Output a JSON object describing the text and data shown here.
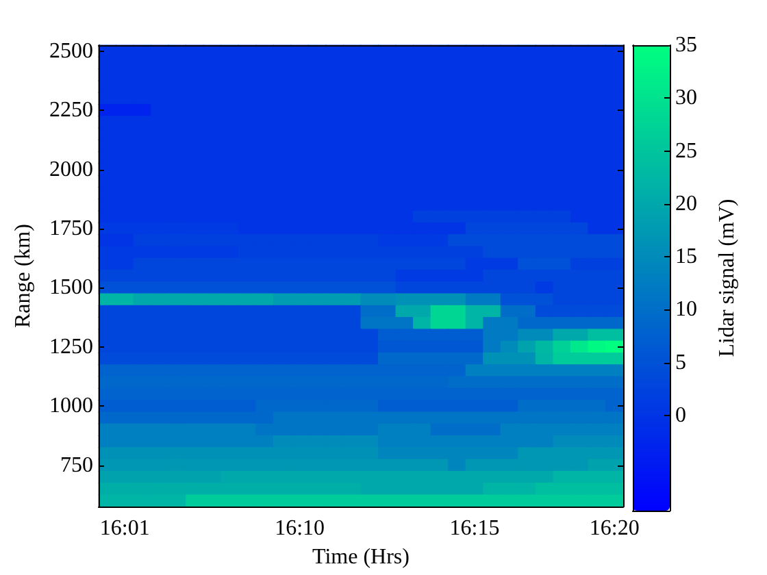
{
  "chart_data": {
    "type": "heatmap",
    "xlabel": "Time (Hrs)",
    "ylabel": "Range (km)",
    "clabel": "Lidar signal (mV)",
    "categories": [
      null,
      "16:01",
      null,
      null,
      null,
      null,
      null,
      null,
      null,
      null,
      null,
      "16:10",
      null,
      null,
      null,
      null,
      null,
      null,
      null,
      null,
      null,
      "16:15",
      null,
      null,
      null,
      null,
      null,
      null,
      null,
      "16:20"
    ],
    "y_categories": [
      "2500",
      null,
      null,
      null,
      null,
      "2250",
      null,
      null,
      null,
      null,
      "2000",
      null,
      null,
      null,
      null,
      "1750",
      null,
      null,
      null,
      null,
      "1500",
      null,
      null,
      null,
      null,
      "1250",
      null,
      null,
      null,
      null,
      "1000",
      null,
      null,
      null,
      null,
      "750",
      null,
      null,
      null
    ],
    "clim": [
      -9,
      35
    ],
    "cticks": [
      0,
      5,
      10,
      15,
      20,
      25,
      30,
      35
    ],
    "cells": [
      [
        0,
        0,
        0,
        0,
        0,
        0,
        0,
        0,
        0,
        0,
        0,
        0,
        0,
        0,
        0,
        0,
        0,
        0,
        0,
        0,
        0,
        0,
        0,
        0,
        0,
        0,
        0,
        0,
        0,
        0
      ],
      [
        0,
        0,
        0,
        0,
        0,
        0,
        0,
        0,
        0,
        0,
        0,
        0,
        0,
        0,
        0,
        0,
        0,
        0,
        0,
        0,
        0,
        0,
        0,
        0,
        0,
        0,
        0,
        0,
        0,
        0
      ],
      [
        0,
        0,
        0,
        0,
        0,
        0,
        0,
        0,
        0,
        0,
        0,
        0,
        0,
        0,
        0,
        0,
        0,
        0,
        0,
        0,
        0,
        0,
        0,
        0,
        0,
        0,
        0,
        0,
        0,
        0
      ],
      [
        0,
        0,
        0,
        0,
        0,
        0,
        0,
        0,
        0,
        0,
        0,
        0,
        0,
        0,
        0,
        0,
        0,
        0,
        0,
        0,
        0,
        0,
        0,
        0,
        0,
        0,
        0,
        0,
        0,
        0
      ],
      [
        0,
        0,
        0,
        0,
        0,
        0,
        0,
        0,
        0,
        0,
        0,
        0,
        0,
        0,
        0,
        0,
        0,
        0,
        0,
        0,
        0,
        0,
        0,
        0,
        0,
        0,
        0,
        0,
        0,
        0
      ],
      [
        -3,
        -3,
        -3,
        0,
        0,
        0,
        0,
        0,
        0,
        0,
        0,
        0,
        0,
        0,
        0,
        0,
        0,
        0,
        0,
        0,
        0,
        0,
        0,
        0,
        0,
        0,
        0,
        0,
        0,
        0
      ],
      [
        0,
        0,
        0,
        0,
        0,
        0,
        0,
        0,
        0,
        0,
        0,
        0,
        0,
        0,
        0,
        0,
        0,
        0,
        0,
        0,
        0,
        0,
        0,
        0,
        0,
        0,
        0,
        0,
        0,
        0
      ],
      [
        0,
        0,
        0,
        0,
        0,
        0,
        0,
        0,
        0,
        0,
        0,
        0,
        0,
        0,
        0,
        0,
        0,
        0,
        0,
        0,
        0,
        0,
        0,
        0,
        0,
        0,
        0,
        0,
        0,
        0
      ],
      [
        0,
        0,
        0,
        0,
        0,
        0,
        0,
        0,
        0,
        0,
        0,
        0,
        0,
        0,
        0,
        0,
        0,
        0,
        0,
        0,
        0,
        0,
        0,
        0,
        0,
        0,
        0,
        0,
        0,
        0
      ],
      [
        0,
        0,
        0,
        0,
        0,
        0,
        0,
        0,
        0,
        0,
        0,
        0,
        0,
        0,
        0,
        0,
        0,
        0,
        0,
        0,
        0,
        0,
        0,
        0,
        0,
        0,
        0,
        0,
        0,
        0
      ],
      [
        0,
        0,
        0,
        0,
        0,
        0,
        0,
        0,
        0,
        0,
        0,
        0,
        0,
        0,
        0,
        0,
        0,
        0,
        0,
        0,
        0,
        0,
        0,
        0,
        0,
        0,
        0,
        0,
        0,
        0
      ],
      [
        0,
        0,
        0,
        0,
        0,
        0,
        0,
        0,
        0,
        0,
        0,
        0,
        0,
        0,
        0,
        0,
        0,
        0,
        0,
        0,
        0,
        0,
        0,
        0,
        0,
        0,
        0,
        0,
        0,
        0
      ],
      [
        0,
        0,
        0,
        0,
        0,
        0,
        0,
        0,
        0,
        0,
        0,
        0,
        0,
        0,
        0,
        0,
        0,
        0,
        0,
        0,
        0,
        0,
        0,
        0,
        0,
        0,
        0,
        0,
        0,
        0
      ],
      [
        0,
        0,
        0,
        0,
        0,
        0,
        0,
        0,
        0,
        0,
        0,
        0,
        0,
        0,
        0,
        0,
        0,
        0,
        0,
        0,
        0,
        0,
        0,
        0,
        0,
        0,
        0,
        0,
        0,
        0
      ],
      [
        0,
        0,
        0,
        0,
        0,
        0,
        0,
        0,
        0,
        0,
        0,
        0,
        0,
        0,
        0,
        0,
        0,
        0,
        2,
        2,
        2,
        2,
        2,
        2,
        2,
        2,
        2,
        0,
        0,
        0
      ],
      [
        1,
        1,
        1,
        1,
        1,
        1,
        1,
        1,
        0,
        0,
        0,
        0,
        0,
        0,
        0,
        0,
        0,
        0,
        0,
        0,
        0,
        3,
        3,
        3,
        3,
        3,
        3,
        3,
        0,
        0
      ],
      [
        0,
        0,
        2,
        2,
        2,
        2,
        2,
        2,
        2,
        2,
        2,
        2,
        2,
        2,
        2,
        2,
        1,
        1,
        1,
        1,
        4,
        4,
        4,
        4,
        4,
        4,
        4,
        4,
        4,
        4
      ],
      [
        1,
        1,
        1,
        1,
        1,
        1,
        1,
        1,
        2,
        2,
        2,
        2,
        2,
        2,
        2,
        2,
        2,
        2,
        2,
        2,
        2,
        2,
        4,
        4,
        4,
        4,
        4,
        4,
        4,
        4
      ],
      [
        1,
        1,
        3,
        3,
        3,
        3,
        3,
        3,
        3,
        3,
        3,
        3,
        3,
        3,
        3,
        3,
        3,
        3,
        3,
        3,
        3,
        1,
        1,
        1,
        5,
        5,
        5,
        2,
        2,
        2
      ],
      [
        3,
        3,
        3,
        3,
        3,
        3,
        3,
        3,
        3,
        3,
        3,
        3,
        3,
        3,
        3,
        3,
        3,
        1,
        1,
        1,
        1,
        1,
        3,
        3,
        3,
        3,
        3,
        3,
        3,
        3
      ],
      [
        5,
        5,
        5,
        5,
        5,
        5,
        5,
        5,
        5,
        5,
        5,
        5,
        5,
        5,
        5,
        5,
        5,
        3,
        3,
        3,
        3,
        3,
        3,
        3,
        3,
        1,
        3,
        3,
        3,
        3
      ],
      [
        22,
        22,
        20,
        20,
        20,
        20,
        20,
        20,
        20,
        20,
        18,
        18,
        18,
        18,
        18,
        15,
        15,
        16,
        16,
        16,
        16,
        12,
        12,
        5,
        5,
        5,
        3,
        3,
        3,
        3
      ],
      [
        3,
        3,
        3,
        3,
        3,
        3,
        3,
        3,
        3,
        3,
        3,
        3,
        3,
        3,
        3,
        10,
        10,
        20,
        20,
        28,
        28,
        22,
        22,
        10,
        10,
        4,
        4,
        4,
        4,
        4
      ],
      [
        3,
        3,
        3,
        3,
        3,
        3,
        3,
        3,
        3,
        3,
        3,
        3,
        3,
        3,
        3,
        11,
        11,
        11,
        22,
        28,
        28,
        22,
        12,
        12,
        9,
        9,
        9,
        9,
        9,
        9
      ],
      [
        3,
        3,
        3,
        3,
        3,
        3,
        3,
        3,
        3,
        3,
        3,
        3,
        3,
        3,
        3,
        3,
        7,
        7,
        7,
        7,
        7,
        7,
        12,
        12,
        15,
        15,
        20,
        20,
        24,
        24
      ],
      [
        3,
        3,
        3,
        3,
        3,
        3,
        3,
        3,
        3,
        3,
        3,
        3,
        3,
        3,
        3,
        3,
        6,
        6,
        6,
        6,
        6,
        6,
        12,
        15,
        19,
        23,
        27,
        31,
        34,
        35
      ],
      [
        4,
        4,
        4,
        4,
        4,
        4,
        4,
        4,
        4,
        4,
        4,
        4,
        4,
        4,
        4,
        4,
        9,
        9,
        9,
        9,
        9,
        9,
        16,
        16,
        16,
        22,
        26,
        26,
        26,
        26
      ],
      [
        8,
        8,
        8,
        8,
        8,
        8,
        8,
        8,
        8,
        8,
        8,
        8,
        8,
        8,
        8,
        8,
        8,
        8,
        8,
        8,
        8,
        13,
        13,
        13,
        13,
        13,
        13,
        13,
        13,
        13
      ],
      [
        9,
        9,
        9,
        9,
        9,
        9,
        9,
        9,
        9,
        9,
        9,
        9,
        9,
        9,
        9,
        9,
        9,
        9,
        9,
        9,
        10,
        10,
        10,
        10,
        10,
        10,
        10,
        10,
        10,
        10
      ],
      [
        8,
        8,
        8,
        8,
        8,
        8,
        8,
        8,
        8,
        8,
        8,
        8,
        8,
        8,
        8,
        8,
        8,
        8,
        8,
        8,
        8,
        8,
        8,
        8,
        8,
        8,
        8,
        8,
        8,
        8
      ],
      [
        7,
        7,
        7,
        7,
        7,
        7,
        7,
        7,
        7,
        9,
        9,
        9,
        9,
        9,
        9,
        9,
        7,
        7,
        7,
        7,
        7,
        7,
        7,
        7,
        10,
        10,
        10,
        10,
        10,
        8
      ],
      [
        9,
        9,
        9,
        9,
        9,
        9,
        9,
        9,
        9,
        9,
        11,
        11,
        11,
        11,
        11,
        11,
        11,
        11,
        11,
        11,
        11,
        11,
        11,
        11,
        11,
        11,
        11,
        11,
        11,
        11
      ],
      [
        13,
        13,
        13,
        13,
        13,
        13,
        13,
        13,
        13,
        11,
        11,
        11,
        11,
        11,
        11,
        11,
        13,
        13,
        13,
        10,
        10,
        10,
        10,
        13,
        13,
        13,
        13,
        13,
        13,
        13
      ],
      [
        13,
        13,
        13,
        13,
        13,
        13,
        13,
        13,
        13,
        13,
        15,
        15,
        15,
        15,
        15,
        15,
        13,
        13,
        13,
        13,
        13,
        13,
        13,
        13,
        13,
        13,
        15,
        15,
        15,
        15
      ],
      [
        16,
        16,
        16,
        16,
        16,
        16,
        16,
        16,
        16,
        16,
        16,
        16,
        16,
        16,
        16,
        16,
        14,
        14,
        14,
        14,
        14,
        14,
        14,
        14,
        17,
        17,
        17,
        17,
        17,
        17
      ],
      [
        17,
        17,
        17,
        17,
        17,
        17,
        17,
        17,
        17,
        17,
        17,
        17,
        17,
        17,
        17,
        17,
        17,
        17,
        17,
        17,
        14,
        17,
        17,
        17,
        17,
        17,
        17,
        17,
        19,
        19
      ],
      [
        19,
        19,
        19,
        19,
        19,
        19,
        19,
        20,
        20,
        20,
        20,
        20,
        20,
        20,
        20,
        20,
        20,
        20,
        20,
        20,
        20,
        20,
        20,
        20,
        20,
        20,
        22,
        22,
        22,
        22
      ],
      [
        21,
        21,
        21,
        21,
        21,
        21,
        21,
        21,
        21,
        21,
        21,
        21,
        21,
        21,
        21,
        20,
        20,
        20,
        20,
        20,
        20,
        20,
        22,
        22,
        22,
        24,
        24,
        24,
        24,
        24
      ],
      [
        22,
        22,
        22,
        22,
        22,
        26,
        26,
        26,
        26,
        26,
        26,
        26,
        26,
        26,
        26,
        26,
        26,
        26,
        26,
        26,
        26,
        26,
        26,
        26,
        26,
        26,
        26,
        26,
        26,
        26
      ]
    ]
  }
}
